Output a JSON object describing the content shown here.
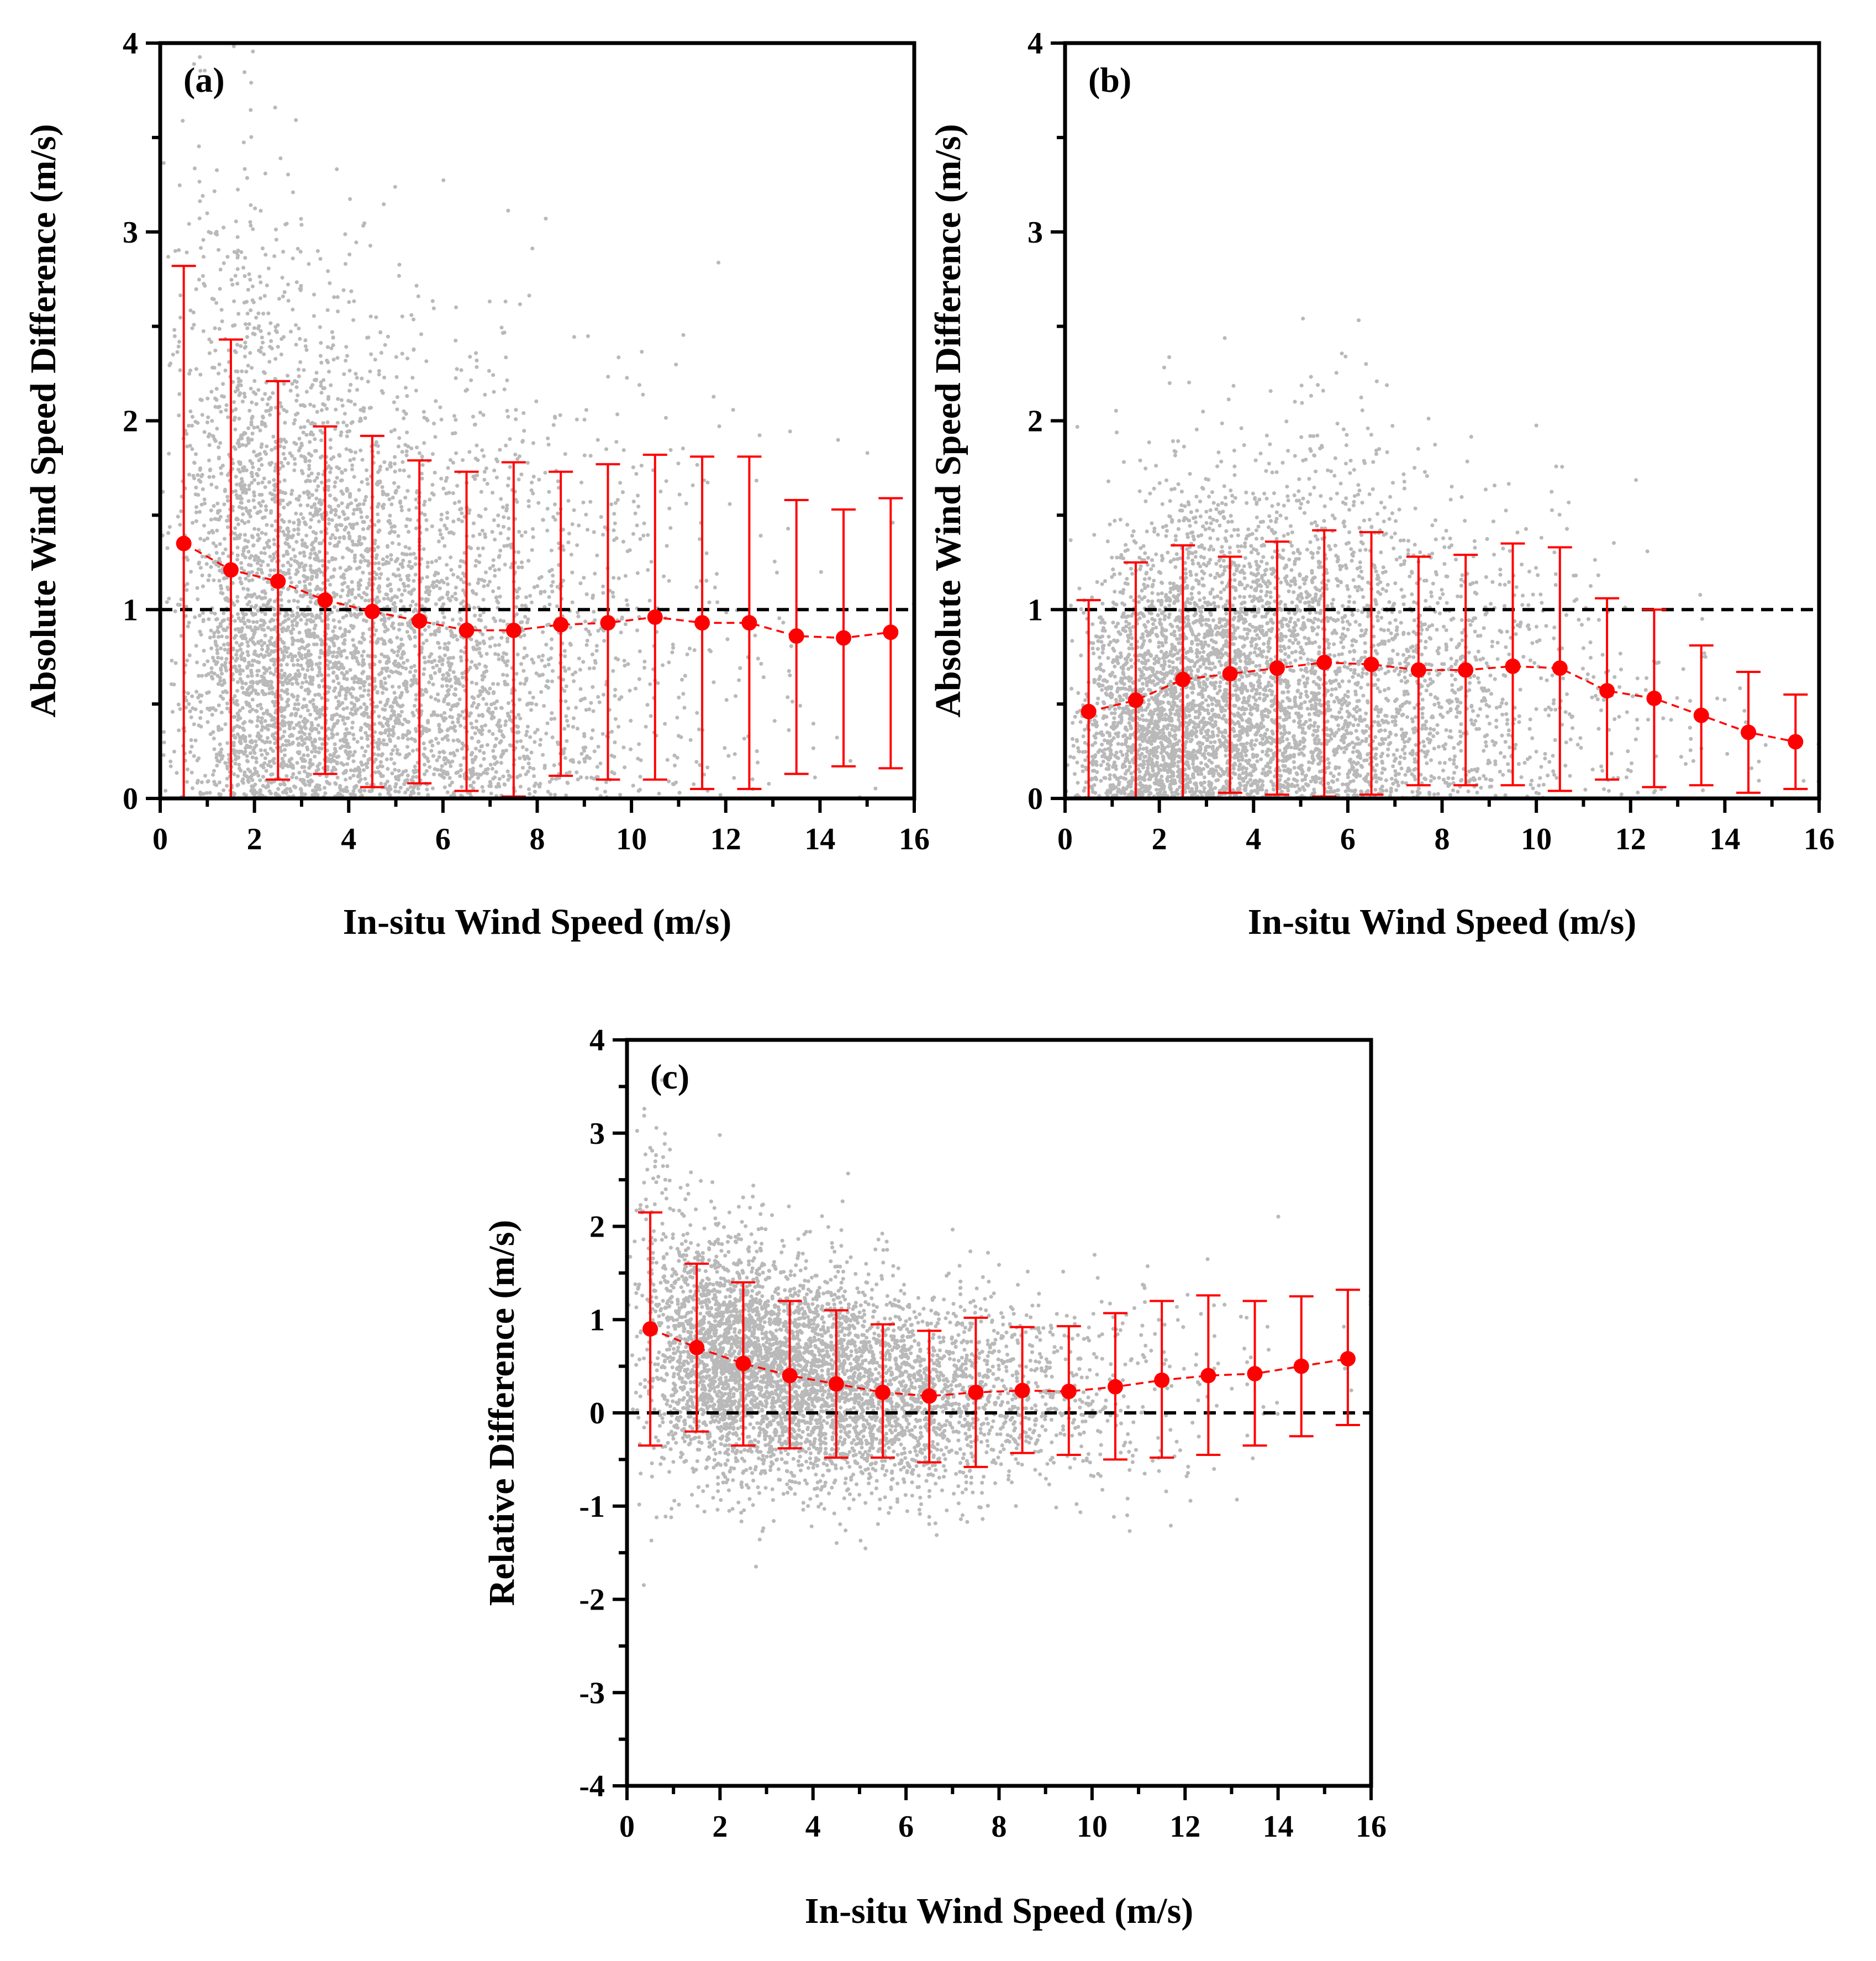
{
  "figure": {
    "scatter_color": "#262626",
    "stat_color": "#ff0000",
    "reference_line_color": "#000000"
  },
  "chart_data": [
    {
      "type": "scatter",
      "panel_label": "(a)",
      "xlabel": "In-situ Wind Speed (m/s)",
      "ylabel": "Absolute Wind Speed Difference (m/s)",
      "xlim": [
        0,
        16
      ],
      "ylim": [
        0,
        4
      ],
      "xticks": [
        "0",
        "2",
        "4",
        "6",
        "8",
        "10",
        "12",
        "14",
        "16"
      ],
      "yticks": [
        "0",
        "1",
        "2",
        "3",
        "4"
      ],
      "reference_line_y": 1,
      "grid": false,
      "bin_centers": [
        0.5,
        1.5,
        2.5,
        3.5,
        4.5,
        5.5,
        6.5,
        7.5,
        8.5,
        9.5,
        10.5,
        11.5,
        12.5,
        13.5,
        14.5,
        15.5
      ],
      "bin_means": [
        1.35,
        1.21,
        1.15,
        1.05,
        0.99,
        0.94,
        0.89,
        0.89,
        0.92,
        0.93,
        0.96,
        0.93,
        0.93,
        0.86,
        0.85,
        0.88
      ],
      "error_lower": [
        0.0,
        0.0,
        0.1,
        0.13,
        0.06,
        0.08,
        0.04,
        0.01,
        0.12,
        0.1,
        0.1,
        0.05,
        0.05,
        0.13,
        0.17,
        0.16
      ],
      "error_upper": [
        2.82,
        2.43,
        2.21,
        1.97,
        1.92,
        1.79,
        1.73,
        1.78,
        1.73,
        1.77,
        1.82,
        1.81,
        1.81,
        1.58,
        1.53,
        1.59
      ]
    },
    {
      "type": "scatter",
      "panel_label": "(b)",
      "xlabel": "In-situ Wind Speed (m/s)",
      "ylabel": "Absolute Wind Speed Difference (m/s)",
      "xlim": [
        0,
        16
      ],
      "ylim": [
        0,
        4
      ],
      "xticks": [
        "0",
        "2",
        "4",
        "6",
        "8",
        "10",
        "12",
        "14",
        "16"
      ],
      "yticks": [
        "0",
        "1",
        "2",
        "3",
        "4"
      ],
      "reference_line_y": 1,
      "grid": false,
      "bin_centers": [
        0.5,
        1.5,
        2.5,
        3.5,
        4.5,
        5.5,
        6.5,
        7.5,
        8.5,
        9.5,
        10.5,
        11.5,
        12.5,
        13.5,
        14.5,
        15.5
      ],
      "bin_means": [
        0.46,
        0.52,
        0.63,
        0.66,
        0.69,
        0.72,
        0.71,
        0.68,
        0.68,
        0.7,
        0.69,
        0.57,
        0.53,
        0.44,
        0.35,
        0.3
      ],
      "error_lower": [
        0.0,
        0.0,
        0.0,
        0.03,
        0.02,
        0.01,
        0.02,
        0.07,
        0.07,
        0.07,
        0.04,
        0.1,
        0.06,
        0.07,
        0.03,
        0.05
      ],
      "error_upper": [
        1.05,
        1.25,
        1.34,
        1.28,
        1.36,
        1.42,
        1.41,
        1.28,
        1.29,
        1.35,
        1.33,
        1.06,
        1.0,
        0.81,
        0.67,
        0.55
      ]
    },
    {
      "type": "scatter",
      "panel_label": "(c)",
      "xlabel": "In-situ Wind Speed (m/s)",
      "ylabel": "Relative Difference (m/s)",
      "xlim": [
        0,
        16
      ],
      "ylim": [
        -4,
        4
      ],
      "xticks": [
        "0",
        "2",
        "4",
        "6",
        "8",
        "10",
        "12",
        "14",
        "16"
      ],
      "yticks": [
        "-4",
        "-3",
        "-2",
        "-1",
        "0",
        "1",
        "2",
        "3",
        "4"
      ],
      "reference_line_y": 0,
      "grid": false,
      "bin_centers": [
        0.5,
        1.5,
        2.5,
        3.5,
        4.5,
        5.5,
        6.5,
        7.5,
        8.5,
        9.5,
        10.5,
        11.5,
        12.5,
        13.5,
        14.5,
        15.5
      ],
      "bin_means": [
        0.9,
        0.7,
        0.53,
        0.4,
        0.31,
        0.22,
        0.18,
        0.22,
        0.24,
        0.23,
        0.28,
        0.35,
        0.4,
        0.42,
        0.5,
        0.58
      ],
      "error_lower": [
        -0.35,
        -0.2,
        -0.35,
        -0.38,
        -0.48,
        -0.48,
        -0.53,
        -0.58,
        -0.43,
        -0.45,
        -0.5,
        -0.48,
        -0.45,
        -0.35,
        -0.25,
        -0.13
      ],
      "error_upper": [
        2.15,
        1.6,
        1.4,
        1.2,
        1.1,
        0.95,
        0.88,
        1.02,
        0.92,
        0.93,
        1.07,
        1.2,
        1.26,
        1.2,
        1.25,
        1.32
      ]
    }
  ]
}
